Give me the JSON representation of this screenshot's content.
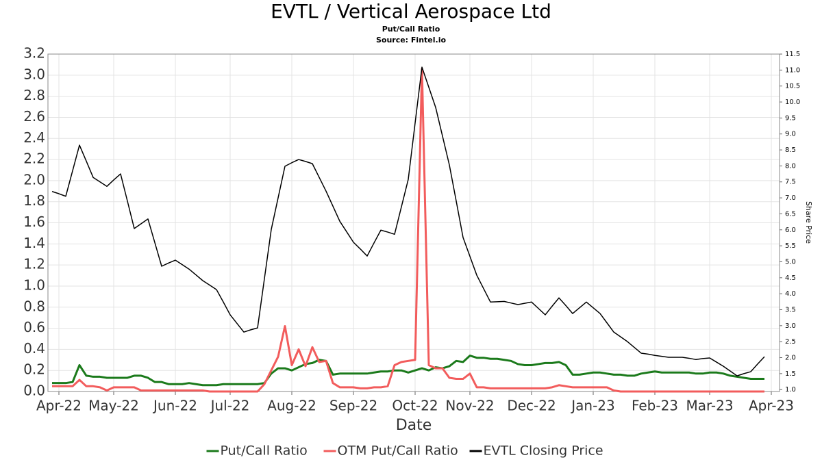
{
  "chart_data": {
    "type": "line",
    "title": "EVTL / Vertical Aerospace Ltd",
    "subtitle": "Put/Call Ratio",
    "source": "Source: Fintel.io",
    "x_label": "Date",
    "y2_label": "Share Price",
    "legend": "bottom",
    "grid": true,
    "categories": [
      null,
      "Apr-22",
      null,
      null,
      null,
      null,
      null,
      null,
      null,
      "May-22",
      null,
      null,
      null,
      null,
      null,
      null,
      null,
      null,
      "Jun-22",
      null,
      null,
      null,
      null,
      null,
      null,
      null,
      "Jul-22",
      null,
      null,
      null,
      null,
      null,
      null,
      null,
      null,
      "Aug-22",
      null,
      null,
      null,
      null,
      null,
      null,
      null,
      null,
      "Sep-22",
      null,
      null,
      null,
      null,
      null,
      null,
      null,
      null,
      "Oct-22",
      null,
      null,
      null,
      null,
      null,
      null,
      null,
      "Nov-22",
      null,
      null,
      null,
      null,
      null,
      null,
      null,
      null,
      "Dec-22",
      null,
      null,
      null,
      null,
      null,
      null,
      null,
      null,
      "Jan-23",
      null,
      null,
      null,
      null,
      null,
      null,
      null,
      null,
      "Feb-23",
      null,
      null,
      null,
      null,
      null,
      null,
      null,
      "Mar-23",
      null,
      null,
      null,
      null,
      null,
      null,
      null,
      null,
      "Apr-23"
    ],
    "ylim": [
      0,
      3.2
    ],
    "yticks": [
      {
        "value": 0,
        "label": "0.0"
      },
      0.2,
      0.4,
      0.6,
      0.8,
      {
        "value": 1,
        "label": "1.0"
      },
      1.2,
      1.4,
      1.6,
      1.8,
      {
        "value": 2,
        "label": "2.0"
      },
      2.2,
      2.4,
      2.6,
      2.8,
      {
        "value": 3,
        "label": "3.0"
      },
      3.2
    ],
    "y2lim": [
      0.94,
      11.5
    ],
    "y2ticks": [
      {
        "value": 1,
        "label": "1.0"
      },
      1.5,
      {
        "value": 2,
        "label": "2.0"
      },
      2.5,
      {
        "value": 3,
        "label": "3.0"
      },
      3.5,
      {
        "value": 4,
        "label": "4.0"
      },
      4.5,
      {
        "value": 5,
        "label": "5.0"
      },
      5.5,
      {
        "value": 6,
        "label": "6.0"
      },
      6.5,
      {
        "value": 7,
        "label": "7.0"
      },
      7.5,
      {
        "value": 8,
        "label": "8.0"
      },
      8.5,
      {
        "value": 9,
        "label": "9.0"
      },
      9.5,
      {
        "value": 10,
        "label": "10.0"
      },
      10.5,
      {
        "value": 11,
        "label": "11.0"
      },
      11.5
    ],
    "series": [
      {
        "name": "Put/Call Ratio",
        "color": "#1b7a1b",
        "width": 3,
        "values": [
          0.08,
          0.08,
          0.08,
          0.09,
          0.25,
          0.15,
          0.14,
          0.14,
          0.13,
          0.13,
          0.13,
          0.13,
          0.15,
          0.15,
          0.13,
          0.09,
          0.09,
          0.07,
          0.07,
          0.07,
          0.08,
          0.07,
          0.06,
          0.06,
          0.06,
          0.07,
          0.07,
          0.07,
          0.07,
          0.07,
          0.07,
          0.08,
          0.17,
          0.22,
          0.22,
          0.2,
          0.23,
          0.26,
          0.27,
          0.3,
          0.29,
          0.16,
          0.17,
          0.17,
          0.17,
          0.17,
          0.17,
          0.18,
          0.19,
          0.19,
          0.2,
          0.2,
          0.18,
          0.2,
          0.22,
          0.2,
          0.23,
          0.22,
          0.24,
          0.29,
          0.28,
          0.34,
          0.32,
          0.32,
          0.31,
          0.31,
          0.3,
          0.29,
          0.26,
          0.25,
          0.25,
          0.26,
          0.27,
          0.27,
          0.28,
          0.25,
          0.16,
          0.16,
          0.17,
          0.18,
          0.18,
          0.17,
          0.16,
          0.16,
          0.15,
          0.15,
          0.17,
          0.18,
          0.19,
          0.18,
          0.18,
          0.18,
          0.18,
          0.18,
          0.17,
          0.17,
          0.18,
          0.18,
          0.17,
          0.15,
          0.14,
          0.13,
          0.12,
          0.12,
          0.12,
          null
        ]
      },
      {
        "name": "OTM Put/Call Ratio",
        "color": "#f25c5c",
        "width": 3,
        "values": [
          0.05,
          0.05,
          0.05,
          0.05,
          0.11,
          0.05,
          0.05,
          0.04,
          0.01,
          0.04,
          0.04,
          0.04,
          0.04,
          0.01,
          0.01,
          0.01,
          0.01,
          0.01,
          0.01,
          0.01,
          0.01,
          0.01,
          0.01,
          0,
          0,
          0,
          0,
          0,
          0,
          0,
          0,
          0.07,
          0.2,
          0.33,
          0.62,
          0.25,
          0.4,
          0.24,
          0.42,
          0.28,
          0.29,
          0.08,
          0.04,
          0.04,
          0.04,
          0.03,
          0.03,
          0.04,
          0.04,
          0.05,
          0.25,
          0.28,
          0.29,
          0.3,
          3.06,
          0.25,
          0.22,
          0.22,
          0.13,
          0.12,
          0.12,
          0.17,
          0.04,
          0.04,
          0.03,
          0.03,
          0.03,
          0.03,
          0.03,
          0.03,
          0.03,
          0.03,
          0.03,
          0.04,
          0.06,
          0.05,
          0.04,
          0.04,
          0.04,
          0.04,
          0.04,
          0.04,
          0.01,
          0,
          0,
          0,
          0,
          0,
          0,
          0,
          0,
          0,
          0,
          0,
          0,
          0,
          0,
          0,
          0,
          0,
          0,
          0,
          0,
          0,
          0,
          null
        ]
      },
      {
        "name": "EVTL Closing Price",
        "color": "#000000",
        "width": 1.5,
        "axis": "y2",
        "values": [
          7.2,
          7.13,
          7.05,
          7.85,
          8.65,
          8.15,
          7.64,
          7.5,
          7.36,
          7.56,
          7.75,
          6.9,
          6.04,
          6.19,
          6.34,
          5.6,
          4.86,
          4.96,
          5.05,
          4.91,
          4.77,
          4.59,
          4.41,
          4.27,
          4.13,
          3.74,
          3.34,
          3.07,
          2.8,
          2.87,
          2.93,
          4.47,
          6.01,
          7.0,
          7.99,
          8.1,
          8.2,
          8.14,
          8.07,
          7.64,
          7.21,
          6.74,
          6.27,
          5.94,
          5.61,
          5.4,
          5.18,
          5.59,
          5.99,
          5.93,
          5.86,
          6.72,
          7.58,
          9.34,
          11.09,
          10.46,
          9.83,
          8.93,
          8.03,
          6.9,
          5.76,
          5.17,
          4.58,
          4.16,
          3.74,
          3.75,
          3.76,
          3.71,
          3.66,
          3.7,
          3.74,
          3.54,
          3.34,
          3.61,
          3.87,
          3.63,
          3.38,
          3.56,
          3.74,
          3.56,
          3.38,
          3.09,
          2.8,
          2.65,
          2.5,
          2.32,
          2.14,
          2.11,
          2.07,
          2.04,
          2.01,
          2.01,
          2.01,
          1.98,
          1.94,
          1.97,
          1.99,
          1.86,
          1.73,
          1.58,
          1.43,
          1.5,
          1.56,
          1.8,
          2.03,
          null
        ]
      }
    ]
  }
}
